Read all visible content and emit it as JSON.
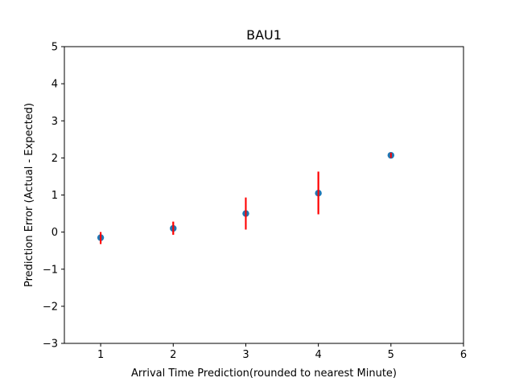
{
  "chart_data": {
    "type": "scatter",
    "title": "BAU1",
    "xlabel": "Arrival Time Prediction(rounded to nearest Minute)",
    "ylabel": "Prediction Error (Actual - Expected)",
    "xlim": [
      0.5,
      6
    ],
    "ylim": [
      -3,
      5
    ],
    "xticks": [
      1,
      2,
      3,
      4,
      5,
      6
    ],
    "yticks": [
      -3,
      -2,
      -1,
      0,
      1,
      2,
      3,
      4,
      5
    ],
    "xtick_labels": [
      "1",
      "2",
      "3",
      "4",
      "5",
      "6"
    ],
    "ytick_labels": [
      "−3",
      "−2",
      "−1",
      "0",
      "1",
      "2",
      "3",
      "4",
      "5"
    ],
    "grid": false,
    "legend": "none",
    "series": [
      {
        "x": [
          1,
          2,
          3,
          4,
          5
        ],
        "y": [
          -0.15,
          0.1,
          0.5,
          1.05,
          2.07
        ],
        "error_low": [
          -0.32,
          -0.07,
          0.07,
          0.48,
          2.0
        ],
        "error_high": [
          0.0,
          0.28,
          0.93,
          1.63,
          2.14
        ]
      }
    ],
    "colors": {
      "marker": "#1f77b4",
      "error_bar": "#ff0000",
      "axes": "#000000"
    }
  }
}
